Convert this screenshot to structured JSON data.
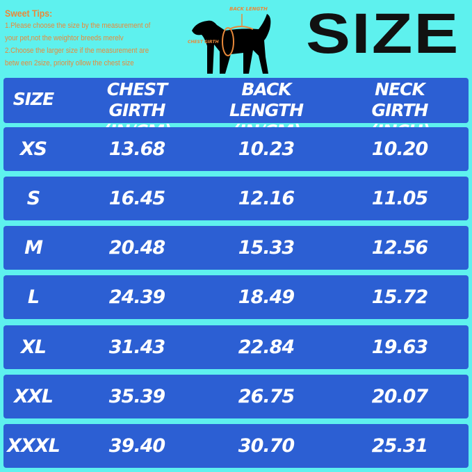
{
  "tips": {
    "title": "Sweet Tips:",
    "lines": [
      "1.Please choose the size by the measurement of",
      "your pet,not the weightor breeds merelv",
      "2.Choose the larger size if the measurement are",
      "betw een 2size, priority ollow the chest size"
    ]
  },
  "diagram": {
    "back_length": "BACK LENGTH",
    "chest_girth": "CHEST GIRTH"
  },
  "title": "SIZE",
  "colors": {
    "background": "#5ef1ee",
    "row": "#2c5fd3",
    "accent": "#e9893a"
  },
  "headers": [
    "SIZE",
    "CHEST GIRTH (IN/CM)",
    "BACK LENGTH (IN/CM)",
    "NECK GIRTH (INCH)"
  ],
  "rows": [
    [
      "XS",
      "13.68",
      "10.23",
      "10.20"
    ],
    [
      "S",
      "16.45",
      "12.16",
      "11.05"
    ],
    [
      "M",
      "20.48",
      "15.33",
      "12.56"
    ],
    [
      "L",
      "24.39",
      "18.49",
      "15.72"
    ],
    [
      "XL",
      "31.43",
      "22.84",
      "19.63"
    ],
    [
      "XXL",
      "35.39",
      "26.75",
      "20.07"
    ],
    [
      "XXXL",
      "39.40",
      "30.70",
      "25.31"
    ]
  ]
}
